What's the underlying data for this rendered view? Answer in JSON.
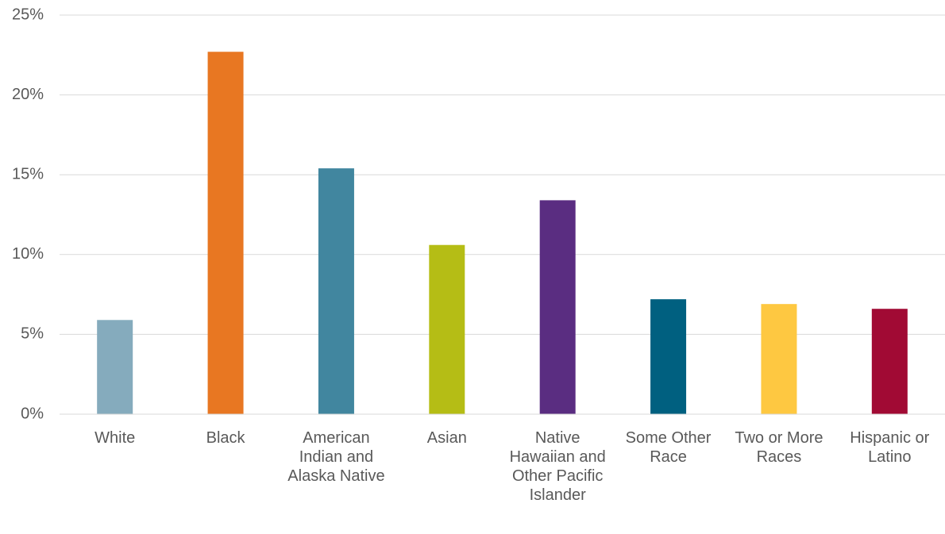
{
  "chart_data": {
    "type": "bar",
    "title": "",
    "xlabel": "",
    "ylabel": "",
    "ylim": [
      0,
      25
    ],
    "y_ticks": [
      {
        "value": 0,
        "label": "0%"
      },
      {
        "value": 5,
        "label": "5%"
      },
      {
        "value": 10,
        "label": "10%"
      },
      {
        "value": 15,
        "label": "15%"
      },
      {
        "value": 20,
        "label": "20%"
      },
      {
        "value": 25,
        "label": "25%"
      }
    ],
    "grid": true,
    "legend": "none",
    "categories": [
      "White",
      "Black",
      "American Indian and Alaska Native",
      "Asian",
      "Native Hawaiian and Other Pacific Islander",
      "Some Other Race",
      "Two or More Races",
      "Hispanic or Latino"
    ],
    "values": [
      5.9,
      22.7,
      15.4,
      10.6,
      13.4,
      7.2,
      6.9,
      6.6
    ],
    "colors": [
      "#85abbd",
      "#e87722",
      "#41869f",
      "#b5bd15",
      "#5a2d81",
      "#006080",
      "#fec841",
      "#a10a34"
    ]
  }
}
